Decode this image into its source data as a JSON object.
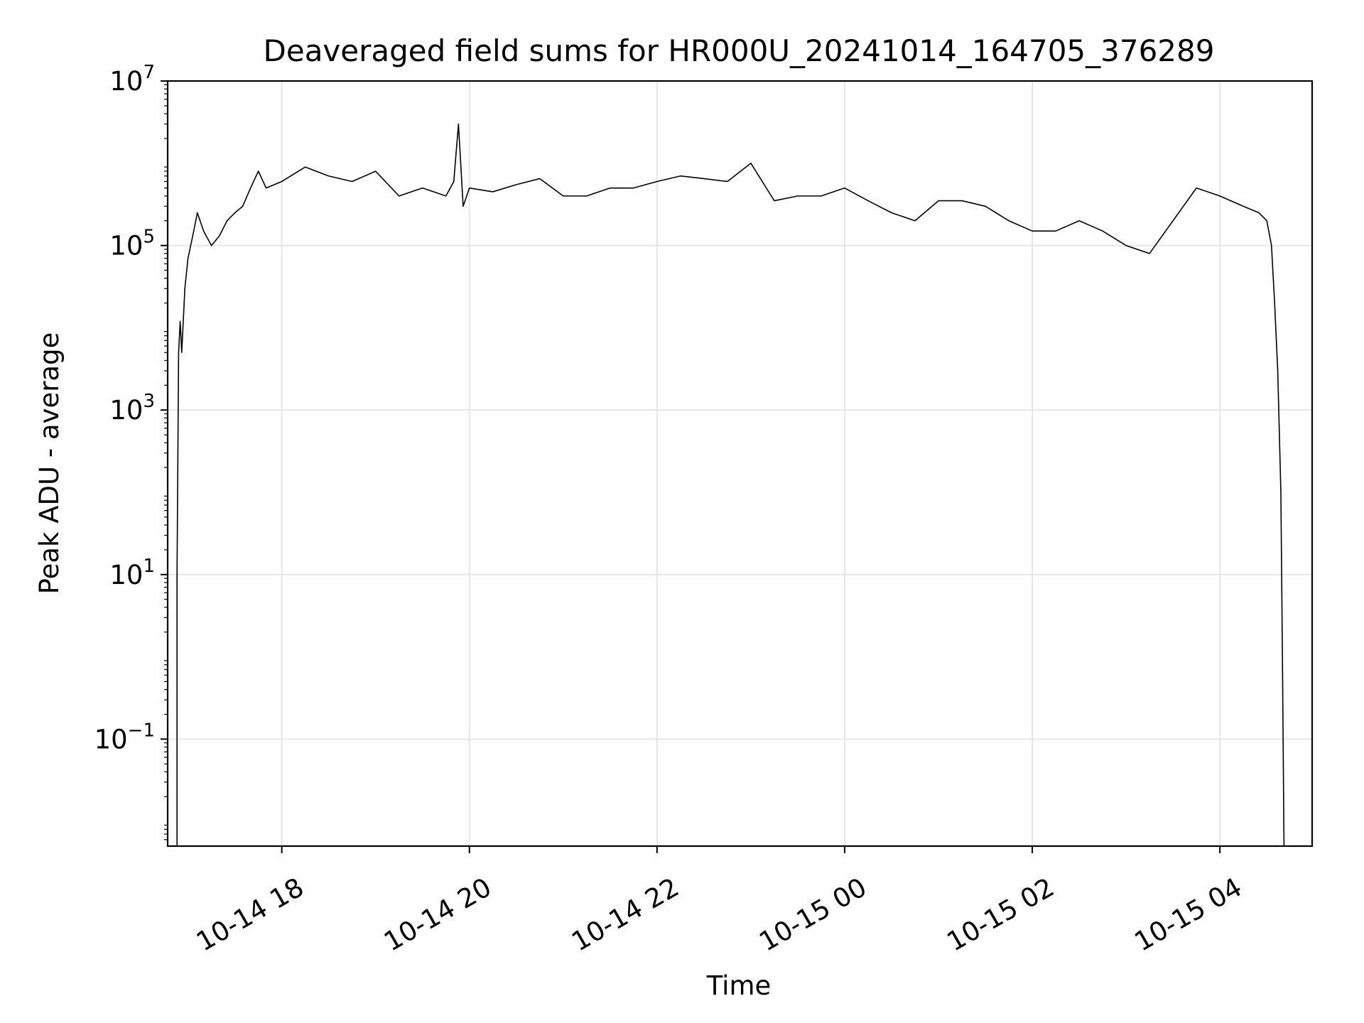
{
  "chart_data": {
    "type": "line",
    "title": "Deaveraged field sums for HR000U_20241014_164705_376289",
    "xlabel": "Time",
    "ylabel": "Peak ADU - average",
    "yscale": "log",
    "ylim": [
      0.005,
      10000000
    ],
    "xlim": [
      "2024-10-14 16:47",
      "2024-10-15 04:59"
    ],
    "grid": true,
    "line_color": "#000000",
    "grid_color": "#e6e6e6",
    "x_ticks": [
      {
        "value": "2024-10-14 18:00",
        "label": "10-14 18"
      },
      {
        "value": "2024-10-14 20:00",
        "label": "10-14 20"
      },
      {
        "value": "2024-10-14 22:00",
        "label": "10-14 22"
      },
      {
        "value": "2024-10-15 00:00",
        "label": "10-15 00"
      },
      {
        "value": "2024-10-15 02:00",
        "label": "10-15 02"
      },
      {
        "value": "2024-10-15 04:00",
        "label": "10-15 04"
      }
    ],
    "y_ticks": [
      {
        "value": 0.1,
        "base": "10",
        "exp": "−1"
      },
      {
        "value": 10,
        "base": "10",
        "exp": "1"
      },
      {
        "value": 1000,
        "base": "10",
        "exp": "3"
      },
      {
        "value": 100000,
        "base": "10",
        "exp": "5"
      },
      {
        "value": 10000000,
        "base": "10",
        "exp": "7"
      }
    ],
    "series": [
      {
        "x": [
          "2024-10-14 16:53",
          "2024-10-14 16:53",
          "2024-10-14 16:54",
          "2024-10-14 16:55",
          "2024-10-14 16:56",
          "2024-10-14 16:58",
          "2024-10-14 17:00",
          "2024-10-14 17:03",
          "2024-10-14 17:06",
          "2024-10-14 17:10",
          "2024-10-14 17:15",
          "2024-10-14 17:20",
          "2024-10-14 17:25",
          "2024-10-14 17:30",
          "2024-10-14 17:35",
          "2024-10-14 17:40",
          "2024-10-14 17:45",
          "2024-10-14 17:50",
          "2024-10-14 18:00",
          "2024-10-14 18:15",
          "2024-10-14 18:30",
          "2024-10-14 18:45",
          "2024-10-14 19:00",
          "2024-10-14 19:15",
          "2024-10-14 19:30",
          "2024-10-14 19:45",
          "2024-10-14 19:50",
          "2024-10-14 19:53",
          "2024-10-14 19:56",
          "2024-10-14 20:00",
          "2024-10-14 20:15",
          "2024-10-14 20:30",
          "2024-10-14 20:45",
          "2024-10-14 21:00",
          "2024-10-14 21:15",
          "2024-10-14 21:30",
          "2024-10-14 21:45",
          "2024-10-14 22:00",
          "2024-10-14 22:15",
          "2024-10-14 22:30",
          "2024-10-14 22:45",
          "2024-10-14 23:00",
          "2024-10-14 23:15",
          "2024-10-14 23:30",
          "2024-10-14 23:45",
          "2024-10-15 00:00",
          "2024-10-15 00:15",
          "2024-10-15 00:30",
          "2024-10-15 00:45",
          "2024-10-15 01:00",
          "2024-10-15 01:15",
          "2024-10-15 01:30",
          "2024-10-15 01:45",
          "2024-10-15 02:00",
          "2024-10-15 02:15",
          "2024-10-15 02:30",
          "2024-10-15 02:45",
          "2024-10-15 03:00",
          "2024-10-15 03:15",
          "2024-10-15 03:30",
          "2024-10-15 03:45",
          "2024-10-15 04:00",
          "2024-10-15 04:15",
          "2024-10-15 04:25",
          "2024-10-15 04:30",
          "2024-10-15 04:33",
          "2024-10-15 04:35",
          "2024-10-15 04:37",
          "2024-10-15 04:39",
          "2024-10-15 04:40",
          "2024-10-15 04:41"
        ],
        "y": [
          0.005,
          10,
          5000,
          12000,
          5000,
          30000,
          70000,
          130000,
          250000,
          150000,
          100000,
          130000,
          200000,
          250000,
          300000,
          500000,
          800000,
          500000,
          600000,
          900000,
          700000,
          600000,
          800000,
          400000,
          500000,
          400000,
          600000,
          3000000,
          300000,
          500000,
          450000,
          550000,
          650000,
          400000,
          400000,
          500000,
          500000,
          600000,
          700000,
          650000,
          600000,
          1000000,
          350000,
          400000,
          400000,
          500000,
          350000,
          250000,
          200000,
          350000,
          350000,
          300000,
          200000,
          150000,
          150000,
          200000,
          150000,
          100000,
          80000,
          200000,
          500000,
          400000,
          300000,
          250000,
          200000,
          100000,
          20000,
          3000,
          100,
          1,
          0.005
        ]
      }
    ]
  }
}
